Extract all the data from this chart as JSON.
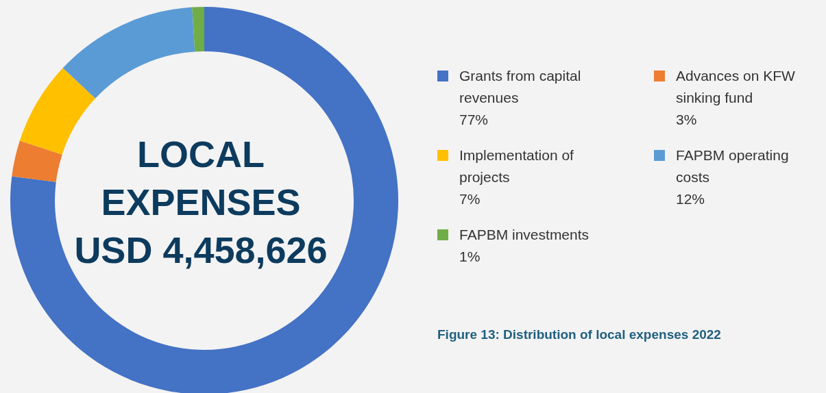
{
  "chart_data": {
    "type": "donut",
    "title": "Figure 13: Distribution of local expenses 2022",
    "annotations": [
      "LOCAL EXPENSES USD 4,458,626"
    ],
    "categories": [
      "Grants from capital revenues",
      "Advances on KFW sinking fund",
      "Implementation of projects",
      "FAPBM operating costs",
      "FAPBM investments"
    ],
    "values": [
      77,
      3,
      7,
      12,
      1
    ],
    "value_labels": [
      "77%",
      "3%",
      "7%",
      "12%",
      "1%"
    ],
    "colors": [
      "#4472c4",
      "#ed7d31",
      "#ffc000",
      "#5b9bd5",
      "#70ad47"
    ],
    "legend": "right"
  }
}
